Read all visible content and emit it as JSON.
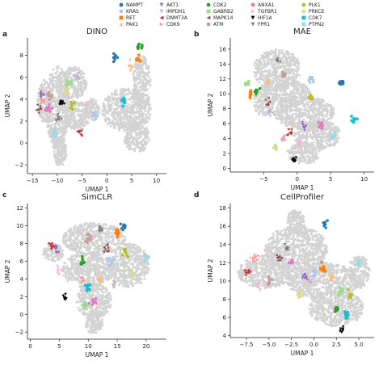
{
  "legend": {
    "entries": [
      {
        "name": "NAMPT",
        "color": "#1f77b4",
        "marker": "circle"
      },
      {
        "name": "KRAS",
        "color": "#aec7e8",
        "marker": "circle"
      },
      {
        "name": "RET",
        "color": "#ff7f0e",
        "marker": "square"
      },
      {
        "name": "PAK1",
        "color": "#ffbb78",
        "marker": "triangle-up"
      },
      {
        "name": "AKT1",
        "color": "#9467bd",
        "marker": "triangle-down"
      },
      {
        "name": "IMPDH1",
        "color": "#c5b0d5",
        "marker": "triangle-down"
      },
      {
        "name": "DNMT3A",
        "color": "#d62728",
        "marker": "triangle-left"
      },
      {
        "name": "CDK9",
        "color": "#ff9896",
        "marker": "triangle-right"
      },
      {
        "name": "CDK2",
        "color": "#2ca02c",
        "marker": "circle"
      },
      {
        "name": "GABRB2",
        "color": "#98df8a",
        "marker": "square"
      },
      {
        "name": "MAPK14",
        "color": "#8c564b",
        "marker": "triangle-left"
      },
      {
        "name": "ATM",
        "color": "#c49c94",
        "marker": "circle"
      },
      {
        "name": "ANXA1",
        "color": "#e377c2",
        "marker": "circle"
      },
      {
        "name": "TGFBR1",
        "color": "#f7b6d2",
        "marker": "triangle-right"
      },
      {
        "name": "HIF1A",
        "color": "#000000",
        "marker": "triangle-down"
      },
      {
        "name": "FPR1",
        "color": "#7f7f7f",
        "marker": "triangle-down"
      },
      {
        "name": "PLK1",
        "color": "#bcbd22",
        "marker": "circle"
      },
      {
        "name": "PRKCE",
        "color": "#dbdb8d",
        "marker": "circle"
      },
      {
        "name": "CDK7",
        "color": "#17becf",
        "marker": "square"
      },
      {
        "name": "PTPN2",
        "color": "#9edae5",
        "marker": "square"
      }
    ]
  },
  "chart_data": [
    {
      "panel": "a",
      "type": "scatter",
      "title": "DINO",
      "xlabel": "UMAP 1",
      "ylabel": "UMAP 2",
      "xlim": [
        -16,
        12
      ],
      "ylim": [
        -2.8,
        9.6
      ],
      "xticks": [
        -15,
        -10,
        -5,
        0,
        5,
        10
      ],
      "yticks": [
        -2,
        0,
        2,
        4,
        6,
        8
      ],
      "background_color": "#d3d3d3",
      "background_regions": [
        {
          "x": -10,
          "y": 3.3,
          "rx": 2.3,
          "ry": 3.8
        },
        {
          "x": -9.5,
          "y": -0.7,
          "rx": 1.4,
          "ry": 1.4
        },
        {
          "x": -12.5,
          "y": 3.8,
          "rx": 1.5,
          "ry": 2.0
        },
        {
          "x": -7,
          "y": 5.5,
          "rx": 3.0,
          "ry": 1.5
        },
        {
          "x": -6,
          "y": 2.5,
          "rx": 2.5,
          "ry": 1.4
        },
        {
          "x": 4,
          "y": 3,
          "rx": 5.0,
          "ry": 2.0
        },
        {
          "x": 7,
          "y": 5.5,
          "rx": 1.8,
          "ry": 2.5
        },
        {
          "x": 6,
          "y": 0.5,
          "rx": 2.5,
          "ry": 1.4
        },
        {
          "x": -3,
          "y": 3,
          "rx": 1.5,
          "ry": 1.0
        }
      ],
      "clusters": [
        {
          "label": "NAMPT",
          "x": 1.5,
          "y": 7.8
        },
        {
          "label": "RET",
          "x": 6.2,
          "y": 7.6
        },
        {
          "label": "CDK2",
          "x": 6.8,
          "y": 8.8
        },
        {
          "label": "PAK1",
          "x": 4.8,
          "y": 7.1
        },
        {
          "label": "CDK7",
          "x": 3.3,
          "y": 3.9
        },
        {
          "label": "DNMT3A",
          "x": -5.5,
          "y": 1.0
        },
        {
          "label": "MAPK14",
          "x": -13.8,
          "y": 3.2
        },
        {
          "label": "CDK9",
          "x": -12.8,
          "y": 3.8
        },
        {
          "label": "HIF1A",
          "x": -9.1,
          "y": 3.7
        },
        {
          "label": "ANXA1",
          "x": -11.8,
          "y": 3.1
        },
        {
          "label": "AKT1",
          "x": -13.0,
          "y": 4.3
        },
        {
          "label": "GABRB2",
          "x": -7.8,
          "y": 5.5
        },
        {
          "label": "PLK1",
          "x": -7.0,
          "y": 3.5
        },
        {
          "label": "ATM",
          "x": -11.5,
          "y": 4.4
        },
        {
          "label": "PTPN2",
          "x": -10.5,
          "y": 0.8
        },
        {
          "label": "KRAS",
          "x": -2.5,
          "y": 2.5
        },
        {
          "label": "TGFBR1",
          "x": -3.8,
          "y": 3.5
        },
        {
          "label": "PRKCE",
          "x": -8.3,
          "y": 4.7
        },
        {
          "label": "FPR1",
          "x": -9.8,
          "y": 2.2
        },
        {
          "label": "IMPDH1",
          "x": -6.0,
          "y": 6.0
        }
      ]
    },
    {
      "panel": "b",
      "type": "scatter",
      "title": "MAE",
      "xlabel": "UMAP 1",
      "ylabel": "UMAP 2",
      "xlim": [
        -10,
        11.5
      ],
      "ylim": [
        -0.5,
        17.5
      ],
      "xticks": [
        -5,
        0,
        5,
        10
      ],
      "yticks": [
        0,
        2,
        4,
        6,
        8,
        10,
        12,
        14,
        16
      ],
      "background_color": "#d3d3d3",
      "background_regions": [
        {
          "x": -3,
          "y": 13.2,
          "rx": 3.5,
          "ry": 2.8
        },
        {
          "x": -1,
          "y": 10,
          "rx": 3.0,
          "ry": 1.8
        },
        {
          "x": 1,
          "y": 7.5,
          "rx": 4.5,
          "ry": 2.2
        },
        {
          "x": 3,
          "y": 4.5,
          "rx": 3.5,
          "ry": 2.0
        },
        {
          "x": 1,
          "y": 2,
          "rx": 2.5,
          "ry": 1.4
        },
        {
          "x": -5,
          "y": 9,
          "rx": 1.5,
          "ry": 2.0
        }
      ],
      "clusters": [
        {
          "label": "NAMPT",
          "x": 6.5,
          "y": 11.3
        },
        {
          "label": "GABRB2",
          "x": -7.5,
          "y": 11.5
        },
        {
          "label": "RET",
          "x": -7.0,
          "y": 10.2
        },
        {
          "label": "CDK2",
          "x": -6.0,
          "y": 10.5
        },
        {
          "label": "HIF1A",
          "x": -0.5,
          "y": 1.3
        },
        {
          "label": "KRAS",
          "x": 2.0,
          "y": 12.0
        },
        {
          "label": "PLK1",
          "x": 2.0,
          "y": 9.3
        },
        {
          "label": "CDK7",
          "x": 8.5,
          "y": 6.5
        },
        {
          "label": "DNMT3A",
          "x": -1.0,
          "y": 4.8
        },
        {
          "label": "ANXA1",
          "x": 3.5,
          "y": 5.8
        },
        {
          "label": "PAK1",
          "x": -4.5,
          "y": 11.7
        },
        {
          "label": "AKT1",
          "x": 1.0,
          "y": 5.5
        },
        {
          "label": "MAPK14",
          "x": -4.5,
          "y": 9.0
        },
        {
          "label": "CDK9",
          "x": -2.0,
          "y": 4.0
        },
        {
          "label": "TGFBR1",
          "x": 0.5,
          "y": 3.5
        },
        {
          "label": "ATM",
          "x": -2.0,
          "y": 12.5
        },
        {
          "label": "FPR1",
          "x": -3.0,
          "y": 14.5
        },
        {
          "label": "PTPN2",
          "x": 5.5,
          "y": 4.5
        },
        {
          "label": "PRKCE",
          "x": -3.2,
          "y": 2.8
        },
        {
          "label": "IMPDH1",
          "x": -4.0,
          "y": 7.5
        }
      ]
    },
    {
      "panel": "c",
      "type": "scatter",
      "title": "SimCLR",
      "xlabel": "UMAP 1",
      "ylabel": "UMAP 2",
      "xlim": [
        -0.5,
        23.5
      ],
      "ylim": [
        -2.8,
        12.5
      ],
      "xticks": [
        0,
        5,
        10,
        15,
        20
      ],
      "yticks": [
        -2,
        0,
        2,
        4,
        6,
        8,
        10,
        12
      ],
      "background_color": "#d3d3d3",
      "background_regions": [
        {
          "x": 11,
          "y": 8.5,
          "rx": 5.5,
          "ry": 1.8
        },
        {
          "x": 10,
          "y": 5,
          "rx": 4.5,
          "ry": 2.0
        },
        {
          "x": 11,
          "y": 1.5,
          "rx": 3.0,
          "ry": 2.0
        },
        {
          "x": 17,
          "y": 5.5,
          "rx": 3.5,
          "ry": 2.5
        },
        {
          "x": 11,
          "y": -1,
          "rx": 1.5,
          "ry": 1.2
        },
        {
          "x": 4,
          "y": 7,
          "rx": 1.8,
          "ry": 1.0
        }
      ],
      "clusters": [
        {
          "label": "NAMPT",
          "x": 16.0,
          "y": 10.0
        },
        {
          "label": "HIF1A",
          "x": 6.0,
          "y": 2.0
        },
        {
          "label": "RET",
          "x": 15.0,
          "y": 9.2
        },
        {
          "label": "DNMT3A",
          "x": 3.5,
          "y": 7.7
        },
        {
          "label": "AKT1",
          "x": 4.5,
          "y": 7.5
        },
        {
          "label": "CDK2",
          "x": 9.0,
          "y": 6.0
        },
        {
          "label": "CDK7",
          "x": 10.0,
          "y": 3.0
        },
        {
          "label": "ANXA1",
          "x": 11.0,
          "y": 1.5
        },
        {
          "label": "PAK1",
          "x": 12.0,
          "y": 4.0
        },
        {
          "label": "GABRB2",
          "x": 9.5,
          "y": 1.0
        },
        {
          "label": "KRAS",
          "x": 14.0,
          "y": 6.0
        },
        {
          "label": "MAPK14",
          "x": 13.0,
          "y": 7.5
        },
        {
          "label": "PLK1",
          "x": 16.5,
          "y": 7.0
        },
        {
          "label": "FPR1",
          "x": 12.0,
          "y": 9.5
        },
        {
          "label": "ATM",
          "x": 10.0,
          "y": 8.5
        },
        {
          "label": "CDK9",
          "x": 9.0,
          "y": 4.0
        },
        {
          "label": "TGFBR1",
          "x": 5.0,
          "y": 5.0
        },
        {
          "label": "PTPN2",
          "x": 20.0,
          "y": 6.5
        },
        {
          "label": "PRKCE",
          "x": 17.5,
          "y": 4.5
        },
        {
          "label": "IMPDH1",
          "x": 14.5,
          "y": 3.5
        }
      ]
    },
    {
      "panel": "d",
      "type": "scatter",
      "title": "CellProfiler",
      "xlabel": "UMAP 1",
      "ylabel": "UMAP 2",
      "xlim": [
        -9.3,
        6.7
      ],
      "ylim": [
        3.8,
        18.5
      ],
      "xticks": [
        -7.5,
        -5.0,
        -2.5,
        0.0,
        2.5,
        5.0
      ],
      "yticks": [
        4,
        6,
        8,
        10,
        12,
        14,
        16,
        18
      ],
      "background_color": "#d3d3d3",
      "background_regions": [
        {
          "x": -2,
          "y": 13.5,
          "rx": 3.5,
          "ry": 2.5
        },
        {
          "x": -5.5,
          "y": 11,
          "rx": 3.0,
          "ry": 1.8
        },
        {
          "x": 1,
          "y": 10,
          "rx": 4.0,
          "ry": 2.0
        },
        {
          "x": 2.5,
          "y": 7,
          "rx": 3.0,
          "ry": 2.0
        },
        {
          "x": 5,
          "y": 11,
          "rx": 1.2,
          "ry": 1.8
        },
        {
          "x": -2,
          "y": 16.5,
          "rx": 1.0,
          "ry": 1.3
        }
      ],
      "clusters": [
        {
          "label": "NAMPT",
          "x": 1.2,
          "y": 16.2
        },
        {
          "label": "DNMT3A",
          "x": -7.5,
          "y": 11.0
        },
        {
          "label": "AKT1",
          "x": -1.0,
          "y": 10.5
        },
        {
          "label": "IMPDH1",
          "x": -0.5,
          "y": 10.0
        },
        {
          "label": "HIF1A",
          "x": 3.2,
          "y": 4.6
        },
        {
          "label": "CDK2",
          "x": 2.5,
          "y": 7.0
        },
        {
          "label": "CDK7",
          "x": 3.5,
          "y": 6.2
        },
        {
          "label": "ANXA1",
          "x": -2.5,
          "y": 12.0
        },
        {
          "label": "RET",
          "x": 1.0,
          "y": 11.5
        },
        {
          "label": "PAK1",
          "x": 2.0,
          "y": 10.5
        },
        {
          "label": "KRAS",
          "x": 0.0,
          "y": 11.0
        },
        {
          "label": "MAPK14",
          "x": -4.0,
          "y": 12.5
        },
        {
          "label": "ATM",
          "x": -5.0,
          "y": 10.0
        },
        {
          "label": "FPR1",
          "x": -3.0,
          "y": 13.5
        },
        {
          "label": "PLK1",
          "x": 4.0,
          "y": 8.5
        },
        {
          "label": "GABRB2",
          "x": 3.0,
          "y": 9.0
        },
        {
          "label": "TGFBR1",
          "x": -6.0,
          "y": 9.5
        },
        {
          "label": "PTPN2",
          "x": 5.0,
          "y": 12.0
        },
        {
          "label": "PRKCE",
          "x": -1.5,
          "y": 8.5
        },
        {
          "label": "CDK9",
          "x": -6.5,
          "y": 12.5
        }
      ]
    }
  ]
}
